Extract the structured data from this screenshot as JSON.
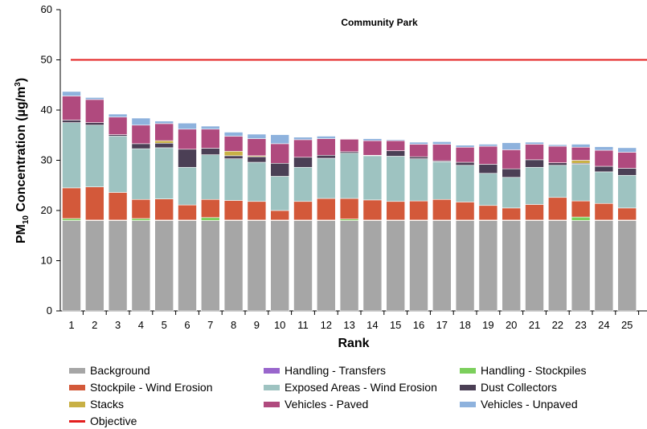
{
  "chart_data": {
    "type": "bar",
    "stacked": true,
    "title": "Community Park",
    "xlabel": "Rank",
    "ylabel_main": "PM",
    "ylabel_sub": "10",
    "ylabel_rest": " Concentration (µg/m",
    "ylabel_sup": "3",
    "ylabel_close": ")",
    "ylim": [
      0,
      60
    ],
    "yticks": [
      "0",
      "10",
      "20",
      "30",
      "40",
      "50",
      "60"
    ],
    "grid": false,
    "legend_position": "bottom",
    "categories": [
      "1",
      "2",
      "3",
      "4",
      "5",
      "6",
      "7",
      "8",
      "9",
      "10",
      "11",
      "12",
      "13",
      "14",
      "15",
      "16",
      "17",
      "18",
      "19",
      "20",
      "21",
      "22",
      "23",
      "24",
      "25"
    ],
    "series": [
      {
        "name": "Background",
        "color": "#A6A6A6",
        "values": [
          18,
          18,
          18,
          18,
          18,
          18,
          18,
          18,
          18,
          18,
          18,
          18,
          18,
          18,
          18,
          18,
          18,
          18,
          18,
          18,
          18,
          18,
          18,
          18,
          18
        ]
      },
      {
        "name": "Handling - Transfers",
        "color": "#9966CC",
        "values": [
          0,
          0,
          0,
          0,
          0,
          0,
          0,
          0,
          0,
          0,
          0,
          0,
          0,
          0,
          0,
          0,
          0,
          0,
          0,
          0,
          0,
          0,
          0,
          0,
          0
        ]
      },
      {
        "name": "Handling - Stockpiles",
        "color": "#7CCF5C",
        "values": [
          0.4,
          0.1,
          0.1,
          0.4,
          0.1,
          0.1,
          0.6,
          0.1,
          0.1,
          0.1,
          0.1,
          0.1,
          0.3,
          0.1,
          0.1,
          0.1,
          0.1,
          0.1,
          0.1,
          0.1,
          0.1,
          0.1,
          0.7,
          0.1,
          0.1
        ]
      },
      {
        "name": "Stockpile - Wind Erosion",
        "color": "#D3593A",
        "values": [
          6.1,
          6.6,
          5.5,
          3.8,
          4.2,
          3.0,
          3.6,
          3.9,
          3.7,
          1.9,
          3.7,
          4.3,
          4.1,
          4.0,
          3.7,
          3.8,
          4.1,
          3.6,
          2.9,
          2.4,
          3.1,
          4.5,
          3.2,
          3.3,
          2.4
        ]
      },
      {
        "name": "Exposed Areas - Wind Erosion",
        "color": "#9EC3C1",
        "values": [
          13,
          12.3,
          11.2,
          10.1,
          10.2,
          7.5,
          8.9,
          8.3,
          7.8,
          6.8,
          6.8,
          8.0,
          9.0,
          8.8,
          9.0,
          8.4,
          7.5,
          7.3,
          6.4,
          6.1,
          7.4,
          6.4,
          7.3,
          6.3,
          6.5
        ]
      },
      {
        "name": "Dust Collectors",
        "color": "#4B3F55",
        "values": [
          0.5,
          0.5,
          0.3,
          1.0,
          0.9,
          3.6,
          1.3,
          0.6,
          1.1,
          2.6,
          2.0,
          0.6,
          0.3,
          0.1,
          1.1,
          0.4,
          0.2,
          0.6,
          1.8,
          1.7,
          1.5,
          0.5,
          0.2,
          1.1,
          1.4
        ]
      },
      {
        "name": "Stacks",
        "color": "#C8B045",
        "values": [
          0,
          0,
          0,
          0,
          0.5,
          0,
          0,
          0.9,
          0.2,
          0,
          0,
          0,
          0,
          0,
          0,
          0,
          0,
          0,
          0,
          0,
          0,
          0,
          0.6,
          0,
          0
        ]
      },
      {
        "name": "Vehicles - Paved",
        "color": "#B04A7E",
        "values": [
          4.8,
          4.6,
          3.5,
          3.7,
          3.4,
          4.0,
          3.8,
          3.0,
          3.4,
          3.9,
          3.5,
          3.3,
          2.5,
          2.9,
          2.0,
          2.5,
          3.3,
          3.0,
          3.6,
          3.8,
          3.1,
          3.3,
          2.6,
          3.2,
          3.2
        ]
      },
      {
        "name": "Vehicles - Unpaved",
        "color": "#8EB2DD",
        "values": [
          0.9,
          0.4,
          0.6,
          1.4,
          0.5,
          1.2,
          0.6,
          0.8,
          0.9,
          1.8,
          0.5,
          0.5,
          0.1,
          0.4,
          0.2,
          0.4,
          0.5,
          0.4,
          0.4,
          1.4,
          0.4,
          0.3,
          0.6,
          0.7,
          0.9
        ]
      }
    ],
    "objective": {
      "name": "Objective",
      "value": 50,
      "color": "#E31E1E"
    },
    "legend": [
      {
        "name": "Background",
        "color": "#A6A6A6",
        "kind": "swatch"
      },
      {
        "name": "Handling - Transfers",
        "color": "#9966CC",
        "kind": "swatch"
      },
      {
        "name": "Handling - Stockpiles",
        "color": "#7CCF5C",
        "kind": "swatch"
      },
      {
        "name": "Stockpile - Wind Erosion",
        "color": "#D3593A",
        "kind": "swatch"
      },
      {
        "name": "Exposed Areas - Wind Erosion",
        "color": "#9EC3C1",
        "kind": "swatch"
      },
      {
        "name": "Dust Collectors",
        "color": "#4B3F55",
        "kind": "swatch"
      },
      {
        "name": "Stacks",
        "color": "#C8B045",
        "kind": "swatch"
      },
      {
        "name": "Vehicles - Paved",
        "color": "#B04A7E",
        "kind": "swatch"
      },
      {
        "name": "Vehicles - Unpaved",
        "color": "#8EB2DD",
        "kind": "swatch"
      },
      {
        "name": "Objective",
        "color": "#E31E1E",
        "kind": "line"
      }
    ]
  }
}
